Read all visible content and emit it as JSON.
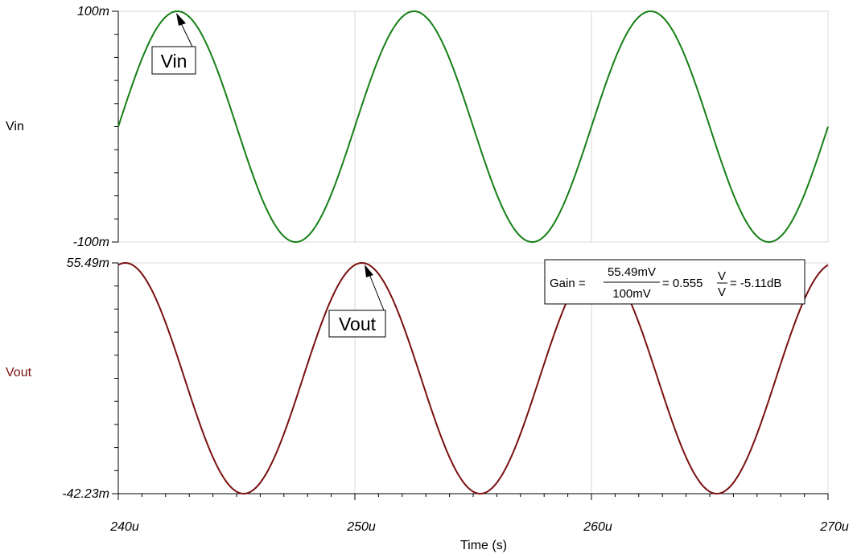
{
  "chart_data": [
    {
      "type": "line",
      "panel": "top",
      "ylabel": "Vin",
      "ylim": [
        -0.1,
        0.1
      ],
      "ytick_labels": [
        "100m",
        "-100m"
      ],
      "xlim": [
        0.00024,
        0.00027
      ],
      "x_tick_labels": [],
      "grid": true,
      "series": [
        {
          "name": "Vin",
          "color": "#168016",
          "amplitude": 0.1,
          "period": 1e-05,
          "phase_zero_at": 0.00024,
          "x": [
            0.00024,
            0.0002425,
            0.000245,
            0.0002475,
            0.00025,
            0.0002525,
            0.000255,
            0.0002575,
            0.00026,
            0.0002625,
            0.000265,
            0.0002675,
            0.00027
          ],
          "values": [
            0,
            0.1,
            0,
            -0.1,
            0,
            0.1,
            0,
            -0.1,
            0,
            0.1,
            0,
            -0.1,
            0
          ]
        }
      ],
      "annotations": [
        {
          "text": "Vin",
          "points_to": {
            "x": 0.0002425,
            "y": 0.1
          }
        }
      ]
    },
    {
      "type": "line",
      "panel": "bottom",
      "ylabel": "Vout",
      "ylabel_color": "#7a1010",
      "ylim": [
        -0.04223,
        0.05549
      ],
      "ytick_labels": [
        "55.49m",
        "-42.23m"
      ],
      "xlim": [
        0.00024,
        0.00027
      ],
      "x_tick_labels": [
        "240u",
        "250u",
        "260u",
        "270u"
      ],
      "xlabel": "Time (s)",
      "grid": true,
      "series": [
        {
          "name": "Vout",
          "color": "#7a1010",
          "offset": 0.00663,
          "amplitude": 0.04886,
          "period": 1e-05,
          "peak_at": 0.0002503,
          "x": [
            0.00024,
            0.0002453,
            0.0002503,
            0.0002553,
            0.0002603,
            0.0002653,
            0.00027
          ],
          "values": [
            0.05549,
            -0.04223,
            0.05549,
            -0.04223,
            0.05549,
            -0.04223,
            0.05549
          ]
        }
      ],
      "annotations": [
        {
          "text": "Vout",
          "points_to": {
            "x": 0.0002503,
            "y": 0.05549
          }
        }
      ],
      "gain_box": {
        "prefix": "Gain =",
        "numerator": "55.49mV",
        "denominator": "100mV",
        "ratio": "= 0.555",
        "unit_num": "V",
        "unit_den": "V",
        "db": "= -5.11dB"
      }
    }
  ]
}
